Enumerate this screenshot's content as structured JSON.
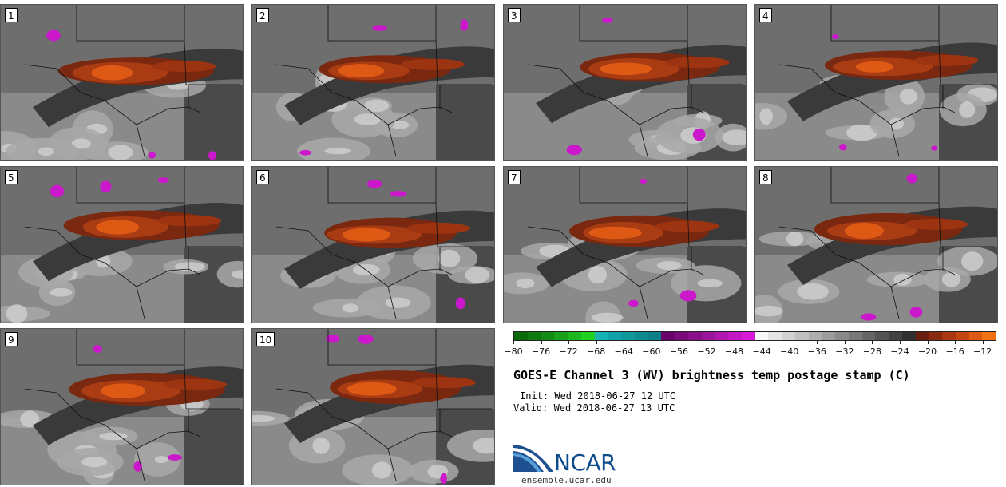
{
  "panels": [
    {
      "label": "1"
    },
    {
      "label": "2"
    },
    {
      "label": "3"
    },
    {
      "label": "4"
    },
    {
      "label": "5"
    },
    {
      "label": "6"
    },
    {
      "label": "7"
    },
    {
      "label": "8"
    },
    {
      "label": "9"
    },
    {
      "label": "10"
    }
  ],
  "colorbar": {
    "min": -80,
    "max": -10,
    "step": 2,
    "tick_labels": [
      "−80",
      "−76",
      "−72",
      "−68",
      "−64",
      "−60",
      "−56",
      "−52",
      "−48",
      "−44",
      "−40",
      "−36",
      "−32",
      "−28",
      "−24",
      "−20",
      "−16",
      "−12"
    ],
    "colors": [
      "#0a6a0a",
      "#0f7a0f",
      "#138a13",
      "#18a018",
      "#1db81d",
      "#22d022",
      "#18b4b4",
      "#12a4a8",
      "#10989c",
      "#0e8c90",
      "#0c8084",
      "#6a006a",
      "#7a0a7a",
      "#8a108a",
      "#9c149c",
      "#b016b0",
      "#c418c4",
      "#d61ad6",
      "#f8f8f8",
      "#e4e4e4",
      "#d2d2d2",
      "#c0c0c0",
      "#aeaeae",
      "#9c9c9c",
      "#8a8a8a",
      "#787878",
      "#666666",
      "#545454",
      "#424242",
      "#303030",
      "#6a1e0e",
      "#8c2a10",
      "#aa3612",
      "#c44612",
      "#de5a10",
      "#f07212"
    ]
  },
  "title": "GOES-E Channel 3 (WV) brightness temp postage stamp (C)",
  "init": "Init: Wed 2018-06-27 12 UTC",
  "valid": "Valid: Wed 2018-06-27 13 UTC",
  "logo_text": "NCAR",
  "url": "ensemble.ucar.edu"
}
